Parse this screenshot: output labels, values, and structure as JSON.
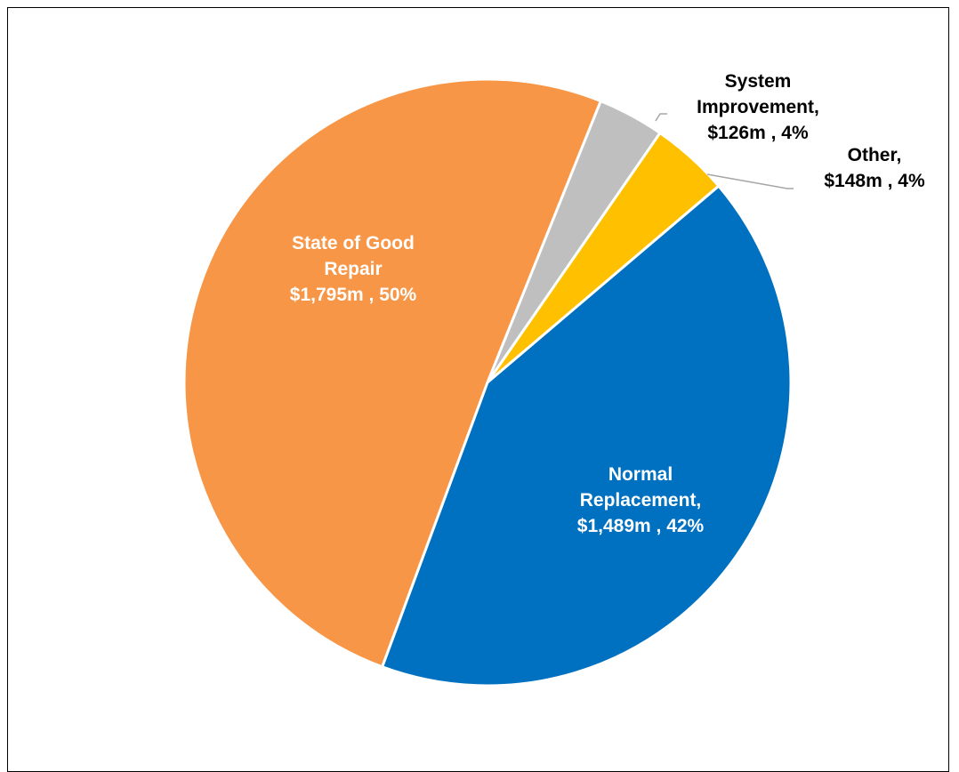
{
  "chart_data": {
    "type": "pie",
    "title": "",
    "slices": [
      {
        "label": "State of Good Repair",
        "value": 1795,
        "percent": 50,
        "color": "#F79646",
        "lines": [
          "State of Good",
          "Repair",
          "$1,795m , 50%"
        ]
      },
      {
        "label": "System Improvement",
        "value": 126,
        "percent": 4,
        "color": "#BFBFBF",
        "lines": [
          "System",
          "Improvement,",
          "$126m , 4%"
        ]
      },
      {
        "label": "Other",
        "value": 148,
        "percent": 4,
        "color": "#FFC000",
        "lines": [
          "Other,",
          "$148m , 4%"
        ]
      },
      {
        "label": "Normal Replacement",
        "value": 1489,
        "percent": 42,
        "color": "#0070C0",
        "lines": [
          "Normal",
          "Replacement,",
          "$1,489m , 42%"
        ]
      }
    ],
    "legend": "none"
  }
}
